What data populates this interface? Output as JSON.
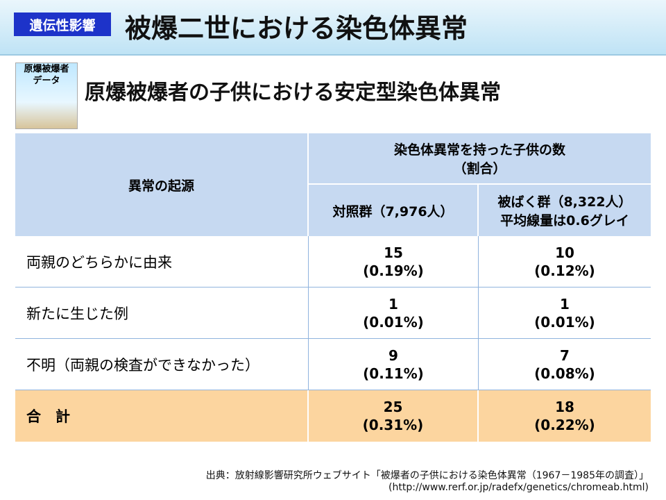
{
  "header": {
    "tag": "遺伝性影響",
    "title": "被爆二世における染色体異常"
  },
  "icon": {
    "lines": [
      "原爆被爆者",
      "データ"
    ]
  },
  "subtitle": "原爆被爆者の子供における安定型染色体異常",
  "table": {
    "origin_header": "異常の起源",
    "count_header": [
      "染色体異常を持った子供の数",
      "（割合）"
    ],
    "groups": [
      [
        "対照群（7,976人）"
      ],
      [
        "被ばく群（8,322人）",
        "平均線量は0.6グレイ"
      ]
    ],
    "rows": [
      {
        "label": "両親のどちらかに由来",
        "cells": [
          [
            "15",
            "(0.19%)"
          ],
          [
            "10",
            "(0.12%)"
          ]
        ]
      },
      {
        "label": "新たに生じた例",
        "cells": [
          [
            "1",
            "(0.01%)"
          ],
          [
            "1",
            "(0.01%)"
          ]
        ]
      },
      {
        "label": "不明（両親の検査ができなかった）",
        "cells": [
          [
            "9",
            "(0.11%)"
          ],
          [
            "7",
            "(0.08%)"
          ]
        ]
      },
      {
        "label": "合　計",
        "cells": [
          [
            "25",
            "(0.31%)"
          ],
          [
            "18",
            "(0.22%)"
          ]
        ]
      }
    ]
  },
  "source": [
    "出典：放射線影響研究所ウェブサイト「被爆者の子供における染色体異常（1967－1985年の調査）」",
    "(http://www.rerf.or.jp/radefx/genetics/chromeab.html)"
  ]
}
